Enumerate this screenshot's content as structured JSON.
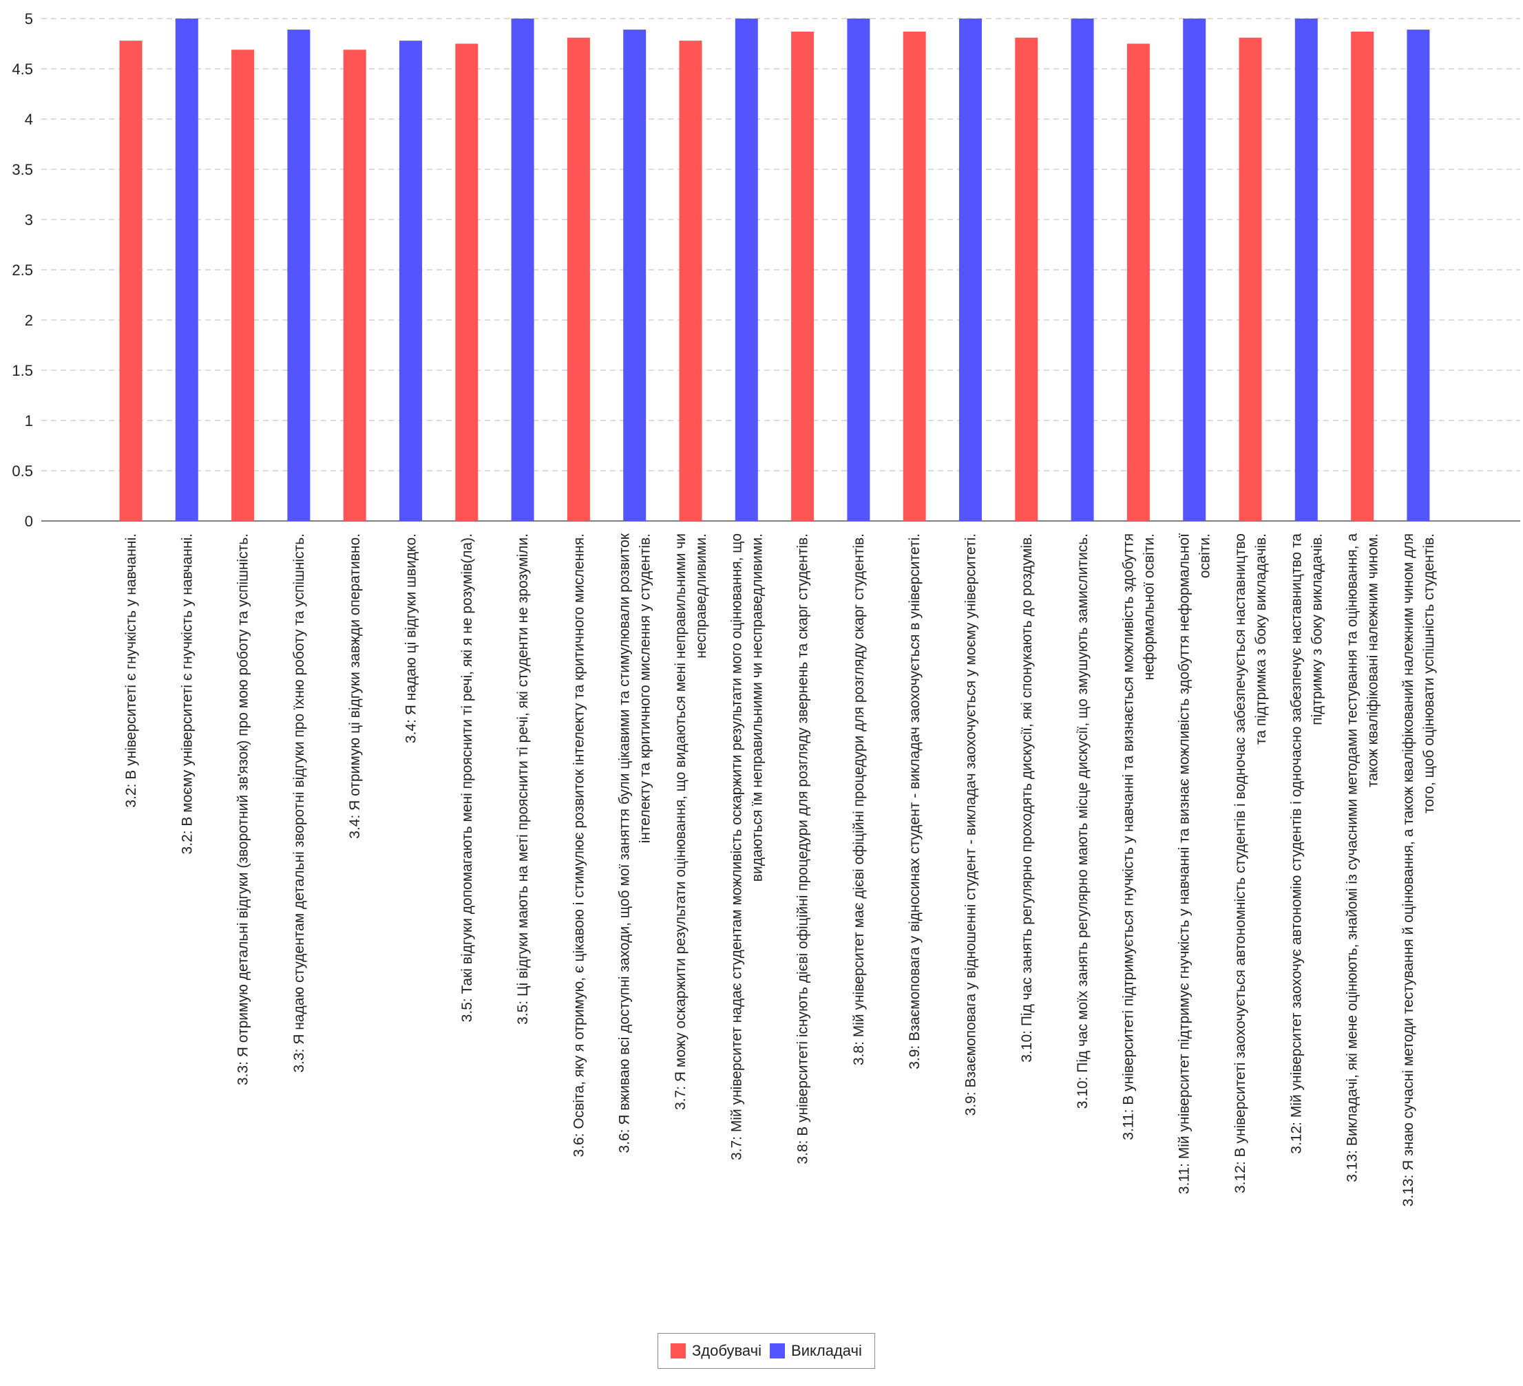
{
  "chart_data": {
    "type": "bar",
    "ylim": [
      0,
      5
    ],
    "yticks": [
      "0",
      "0.5",
      "1",
      "1.5",
      "2",
      "2.5",
      "3",
      "3.5",
      "4",
      "4.5",
      "5"
    ],
    "grid": true,
    "legend_position": "bottom",
    "colors": {
      "Здобувачі": "#ff5555",
      "Викладачі": "#5555ff"
    },
    "series": [
      {
        "name": "Здобувачі",
        "color": "#ff5555"
      },
      {
        "name": "Викладачі",
        "color": "#5555ff"
      }
    ],
    "categories": [
      {
        "group": "Здобувачі",
        "value": 4.78,
        "label": [
          "3.2: В  університеті є гнучкість у навчанні."
        ]
      },
      {
        "group": "Викладачі",
        "value": 5.0,
        "label": [
          "3.2: В моєму університеті є гнучкість у навчанні."
        ]
      },
      {
        "group": "Здобувачі",
        "value": 4.69,
        "label": [
          "3.3: Я отримую детальні відгуки (зворотний зв'язок) про мою роботу та успішність."
        ]
      },
      {
        "group": "Викладачі",
        "value": 4.89,
        "label": [
          "3.3: Я надаю студентам детальні зворотні відгуки про їхню роботу та успішність."
        ]
      },
      {
        "group": "Здобувачі",
        "value": 4.69,
        "label": [
          "3.4: Я отримую ці відгуки  завжди оперативно."
        ]
      },
      {
        "group": "Викладачі",
        "value": 4.78,
        "label": [
          "3.4: Я надаю ці відгуки швидко."
        ]
      },
      {
        "group": "Здобувачі",
        "value": 4.75,
        "label": [
          "3.5: Такі відгуки допомагають мені прояснити ті речі, які я не розумів(ла)."
        ]
      },
      {
        "group": "Викладачі",
        "value": 5.0,
        "label": [
          "3.5: Ці відгуки мають на меті прояснити ті речі, які студенти не зрозуміли."
        ]
      },
      {
        "group": "Здобувачі",
        "value": 4.81,
        "label": [
          "3.6: Освіта, яку я отримую, є цікавою і стимулює розвиток інтелекту та критичного мислення."
        ]
      },
      {
        "group": "Викладачі",
        "value": 4.89,
        "label": [
          "3.6: Я вживаю всі доступні заходи, щоб мої заняття були цікавими та стимулювали розвиток",
          "інтелекту та критичного мислення у студентів."
        ]
      },
      {
        "group": "Здобувачі",
        "value": 4.78,
        "label": [
          "3.7: Я можу оскаржити результати оцінювання, що видаються мені неправильними чи",
          "несправедливими."
        ]
      },
      {
        "group": "Викладачі",
        "value": 5.0,
        "label": [
          "3.7: Мій університет надає студентам можливість оскаржити результати мого оцінювання, що",
          "видаються їм неправильними чи несправедливими."
        ]
      },
      {
        "group": "Здобувачі",
        "value": 4.87,
        "label": [
          "3.8: В університеті існують дієві офіційні процедури для розгляду звернень та  скарг студентів."
        ]
      },
      {
        "group": "Викладачі",
        "value": 5.0,
        "label": [
          "3.8: Мій університет має дієві офіційні процедури для розгляду скарг студентів."
        ]
      },
      {
        "group": "Здобувачі",
        "value": 4.87,
        "label": [
          "3.9: Взаємоповага у відносинах студент - викладач заохочується в  університеті."
        ]
      },
      {
        "group": "Викладачі",
        "value": 5.0,
        "label": [
          "3.9: Взаємоповага у відношенні студент - викладач заохочується у моєму університеті."
        ]
      },
      {
        "group": "Здобувачі",
        "value": 4.81,
        "label": [
          "3.10: Під час занять регулярно проходять дискусії, які  спонукають до роздумів."
        ]
      },
      {
        "group": "Викладачі",
        "value": 5.0,
        "label": [
          "3.10: Під час моїх занять регулярно мають місце дискусії, що змушують замислитись."
        ]
      },
      {
        "group": "Здобувачі",
        "value": 4.75,
        "label": [
          "3.11: В  університеті  підтримується гнучкість у навчанні та визнається можливість здобуття",
          "неформальної освіти."
        ]
      },
      {
        "group": "Викладачі",
        "value": 5.0,
        "label": [
          "3.11: Мій університет підтримує гнучкість у навчанні та визнає можливість здобуття неформальної",
          "освіти."
        ]
      },
      {
        "group": "Здобувачі",
        "value": 4.81,
        "label": [
          "3.12: В  університеті заохочується автономність студентів і водночас забезпечується наставництво",
          "та підтримка з боку викладачів."
        ]
      },
      {
        "group": "Викладачі",
        "value": 5.0,
        "label": [
          "3.12: Мій університет заохочує автономію студентів і одночасно забезпечує наставництво та",
          "підтримку з боку викладачів."
        ]
      },
      {
        "group": "Здобувачі",
        "value": 4.87,
        "label": [
          "3.13: Викладачі, які мене оцінюють, знайомі із сучасними методами тестування та оцінювання, а",
          "також кваліфіковані належним чином."
        ]
      },
      {
        "group": "Викладачі",
        "value": 4.89,
        "label": [
          "3.13: Я знаю сучасні методи тестування й оцінювання, а також кваліфікований належним чином для",
          "того, щоб оцінювати успішність студентів."
        ]
      }
    ]
  }
}
